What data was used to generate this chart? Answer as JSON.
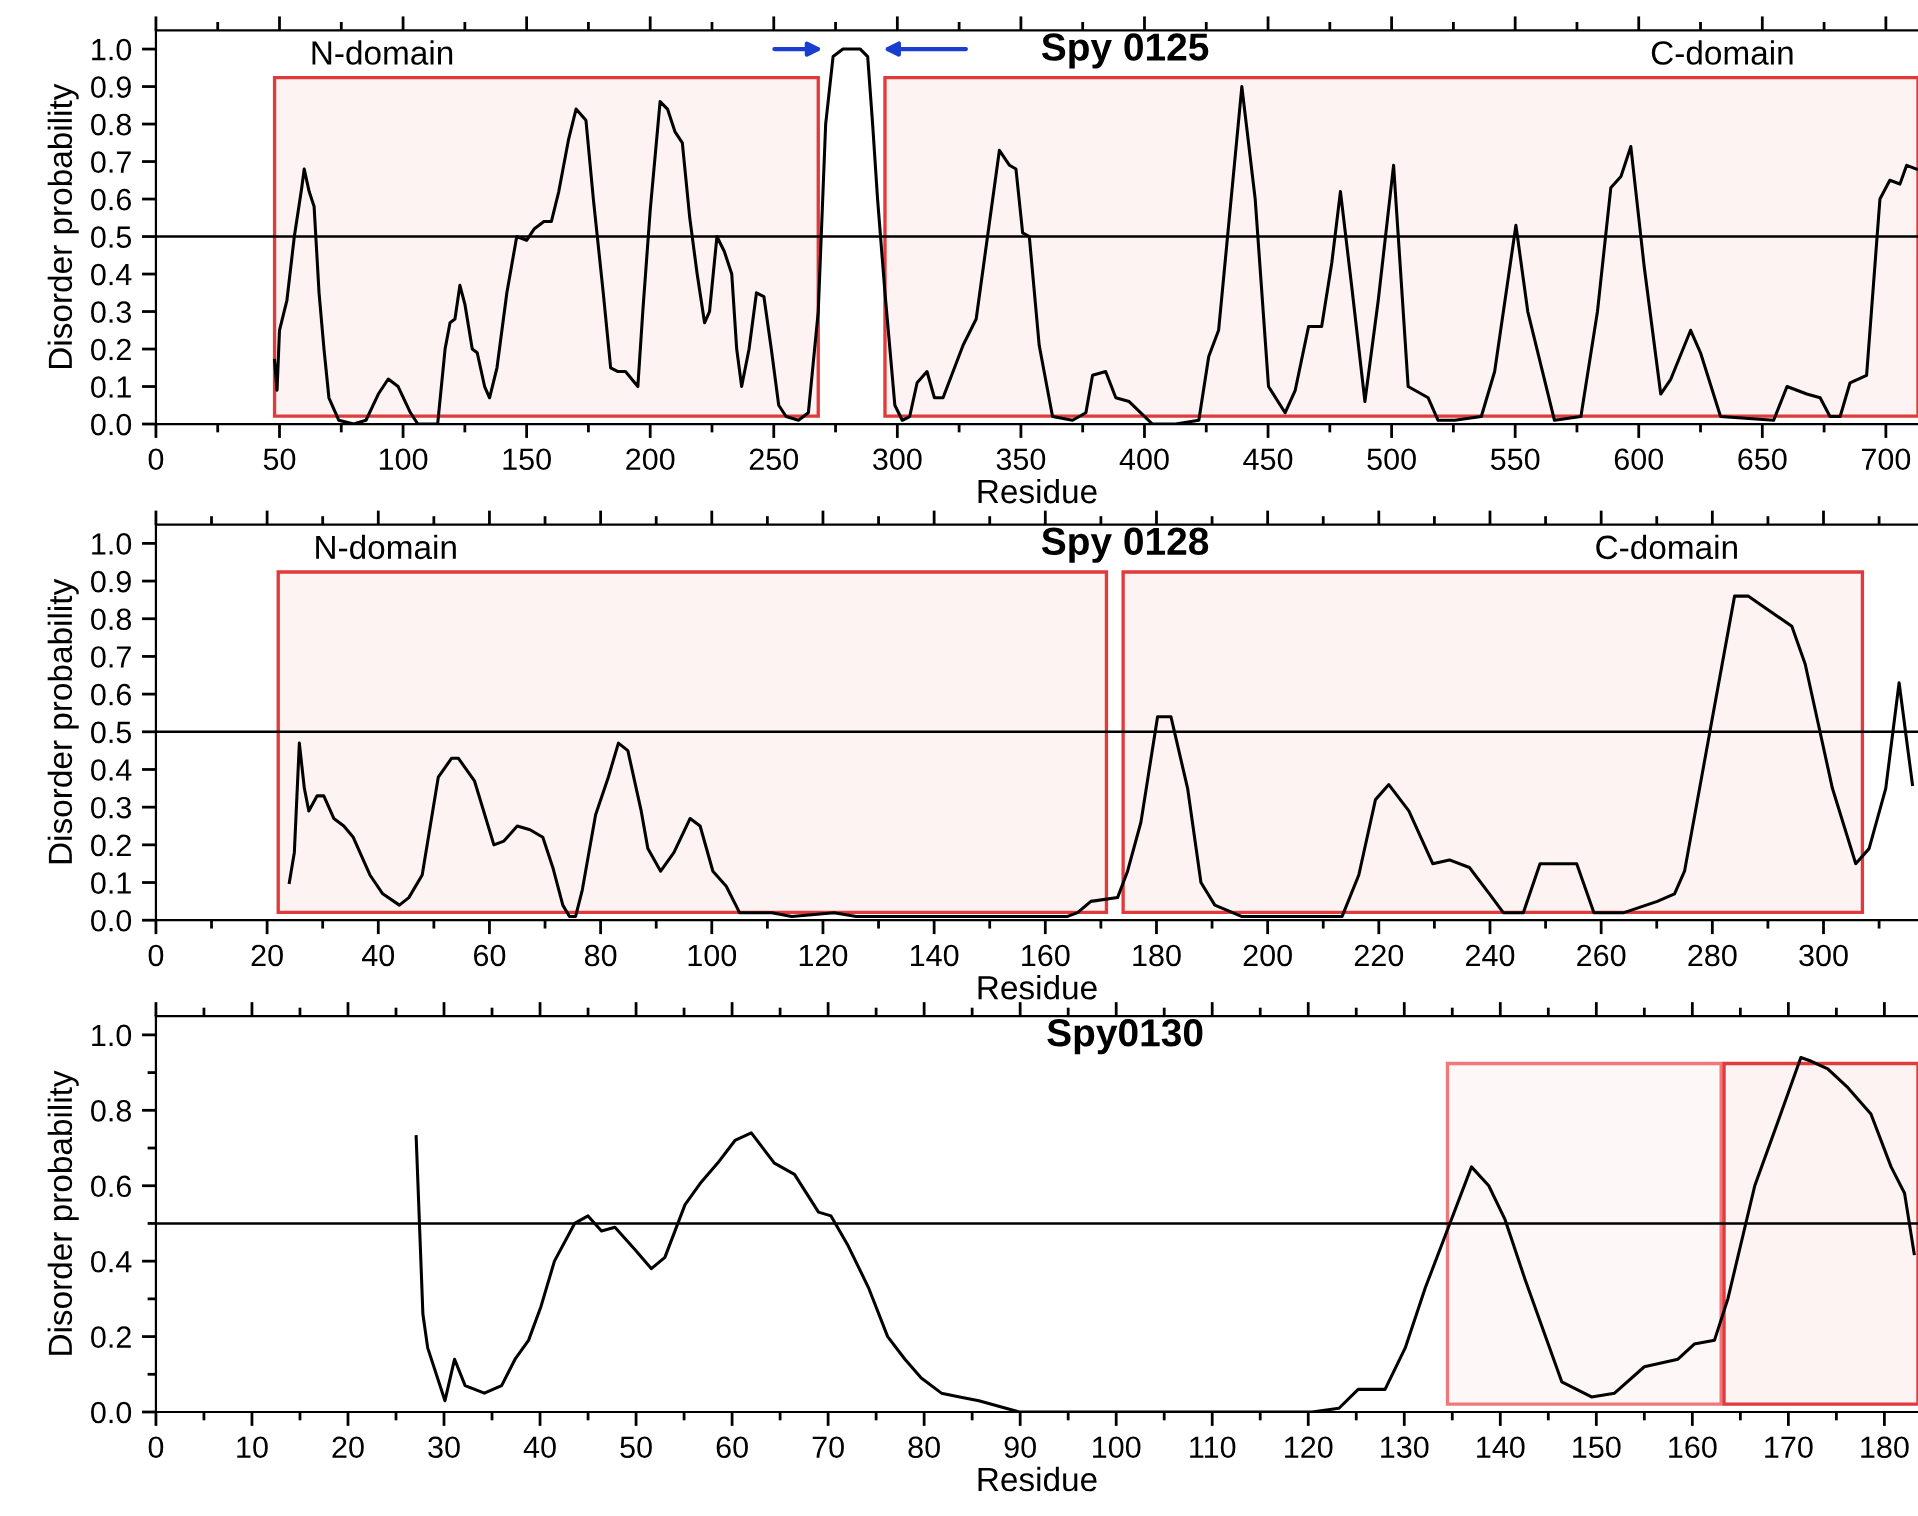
{
  "chart_data": [
    {
      "type": "line",
      "title": "Spy 0125",
      "xlabel": "Residue",
      "ylabel": "Disorder probability",
      "xlim": [
        0,
        713
      ],
      "ylim": [
        0,
        1.05
      ],
      "xticks": [
        0,
        {
          "value": 25,
          "label": null
        },
        50,
        {
          "value": 75,
          "label": null
        },
        100,
        {
          "value": 125,
          "label": null
        },
        150,
        {
          "value": 175,
          "label": null
        },
        200,
        {
          "value": 225,
          "label": null
        },
        250,
        {
          "value": 275,
          "label": null
        },
        300,
        {
          "value": 325,
          "label": null
        },
        350,
        {
          "value": 375,
          "label": null
        },
        400,
        {
          "value": 425,
          "label": null
        },
        450,
        {
          "value": 475,
          "label": null
        },
        500,
        {
          "value": 525,
          "label": null
        },
        550,
        {
          "value": 575,
          "label": null
        },
        600,
        {
          "value": 625,
          "label": null
        },
        650,
        {
          "value": 675,
          "label": null
        },
        700
      ],
      "yticks": [
        {
          "value": 0,
          "label": "0.0"
        },
        0.1,
        0.2,
        0.3,
        0.4,
        0.5,
        0.6,
        0.7,
        0.8,
        0.9,
        {
          "value": 1,
          "label": "1.0"
        }
      ],
      "grid": false,
      "marker": "none",
      "line_style": "solid",
      "ref_lines": [
        {
          "axis": "y",
          "value": 0.5,
          "color": "#000000"
        }
      ],
      "bands": [
        {
          "axis": "x",
          "from": 48,
          "to": 268,
          "color": "#e03a3a",
          "label": "N-domain"
        },
        {
          "axis": "x",
          "from": 295,
          "to": 713,
          "color": "#e03a3a",
          "label": "C-domain"
        }
      ],
      "series": [
        {
          "color": "#000000",
          "x": [
            48,
            49,
            50,
            53,
            56,
            59,
            60,
            62,
            64,
            66,
            68,
            70,
            74,
            80,
            85,
            90,
            94,
            98,
            103,
            106,
            114,
            117,
            119,
            121,
            123,
            125,
            128,
            130,
            133,
            135,
            138,
            142,
            146,
            150,
            153,
            157,
            160,
            163,
            167,
            170,
            174,
            177,
            181,
            184,
            187,
            190,
            195,
            197,
            200,
            204,
            207,
            210,
            213,
            216,
            219,
            222,
            224,
            227,
            230,
            233,
            235,
            237,
            240,
            243,
            246,
            249,
            252,
            255,
            260,
            264,
            268,
            271,
            274,
            278,
            285,
            288,
            290,
            292,
            295,
            299,
            302,
            305,
            308,
            312,
            315,
            318.5,
            326.6,
            331.9,
            341.3,
            345.4,
            348,
            350.7,
            353.4,
            357.4,
            362.8,
            370.9,
            376.3,
            379,
            384.3,
            388.4,
            393.8,
            403.2,
            412.6,
            422,
            426,
            430,
            439.4,
            444.8,
            450.2,
            456.9,
            461,
            466.4,
            471.7,
            475.8,
            479.3,
            483.8,
            489.2,
            494.6,
            500.8,
            506.7,
            514.8,
            518.8,
            525.5,
            536.3,
            541.7,
            550.3,
            555.1,
            565.9,
            576.6,
            583.3,
            588.7,
            592.8,
            596.8,
            602.2,
            608.9,
            613,
            621,
            625,
            633.1,
            654.6,
            660,
            668,
            673.4,
            677.4,
            681.5,
            685.5,
            692.2,
            697.6,
            701.6,
            705.7,
            708.4,
            712.4
          ],
          "values": [
            0.17,
            0.09,
            0.25,
            0.33,
            0.5,
            0.63,
            0.68,
            0.62,
            0.58,
            0.35,
            0.2,
            0.07,
            0.01,
            0.0,
            0.01,
            0.08,
            0.12,
            0.1,
            0.03,
            0.0,
            0.0,
            0.2,
            0.27,
            0.28,
            0.37,
            0.32,
            0.2,
            0.19,
            0.1,
            0.07,
            0.15,
            0.35,
            0.5,
            0.49,
            0.52,
            0.54,
            0.54,
            0.62,
            0.76,
            0.84,
            0.81,
            0.6,
            0.35,
            0.15,
            0.14,
            0.14,
            0.1,
            0.3,
            0.57,
            0.86,
            0.84,
            0.78,
            0.75,
            0.55,
            0.4,
            0.27,
            0.3,
            0.5,
            0.46,
            0.4,
            0.2,
            0.1,
            0.2,
            0.35,
            0.34,
            0.2,
            0.05,
            0.02,
            0.01,
            0.03,
            0.3,
            0.8,
            0.98,
            1.0,
            1.0,
            0.98,
            0.8,
            0.6,
            0.35,
            0.05,
            0.01,
            0.02,
            0.11,
            0.14,
            0.07,
            0.07,
            0.21,
            0.28,
            0.73,
            0.69,
            0.68,
            0.51,
            0.5,
            0.21,
            0.02,
            0.01,
            0.03,
            0.13,
            0.14,
            0.07,
            0.06,
            0.0,
            0.0,
            0.01,
            0.18,
            0.25,
            0.9,
            0.6,
            0.1,
            0.03,
            0.09,
            0.26,
            0.26,
            0.43,
            0.62,
            0.37,
            0.06,
            0.33,
            0.69,
            0.1,
            0.07,
            0.01,
            0.01,
            0.02,
            0.14,
            0.53,
            0.3,
            0.01,
            0.02,
            0.3,
            0.63,
            0.66,
            0.74,
            0.42,
            0.08,
            0.12,
            0.25,
            0.19,
            0.02,
            0.01,
            0.1,
            0.08,
            0.07,
            0.02,
            0.02,
            0.11,
            0.13,
            0.6,
            0.65,
            0.64,
            0.69,
            0.68
          ]
        }
      ]
    },
    {
      "type": "line",
      "title": "Spy 0128",
      "xlabel": "Residue",
      "ylabel": "Disorder probability",
      "xlim": [
        0,
        317
      ],
      "ylim": [
        0,
        1.05
      ],
      "xticks": [
        0,
        {
          "value": 10,
          "label": null
        },
        20,
        {
          "value": 30,
          "label": null
        },
        40,
        {
          "value": 50,
          "label": null
        },
        60,
        {
          "value": 70,
          "label": null
        },
        80,
        {
          "value": 90,
          "label": null
        },
        100,
        {
          "value": 110,
          "label": null
        },
        120,
        {
          "value": 130,
          "label": null
        },
        140,
        {
          "value": 150,
          "label": null
        },
        160,
        {
          "value": 170,
          "label": null
        },
        180,
        {
          "value": 190,
          "label": null
        },
        200,
        {
          "value": 210,
          "label": null
        },
        220,
        {
          "value": 230,
          "label": null
        },
        240,
        {
          "value": 250,
          "label": null
        },
        260,
        {
          "value": 270,
          "label": null
        },
        280,
        {
          "value": 290,
          "label": null
        },
        300,
        {
          "value": 310,
          "label": null
        }
      ],
      "yticks": [
        {
          "value": 0,
          "label": "0.0"
        },
        0.1,
        0.2,
        0.3,
        0.4,
        0.5,
        0.6,
        0.7,
        0.8,
        0.9,
        {
          "value": 1,
          "label": "1.0"
        }
      ],
      "grid": false,
      "marker": "none",
      "line_style": "solid",
      "ref_lines": [
        {
          "axis": "y",
          "value": 0.5,
          "color": "#000000"
        }
      ],
      "bands": [
        {
          "axis": "x",
          "from": 22,
          "to": 171,
          "color": "#e03a3a",
          "label": "N-domain"
        },
        {
          "axis": "x",
          "from": 174,
          "to": 307,
          "color": "#e03a3a",
          "label": "C-domain"
        }
      ],
      "series": [
        {
          "color": "#000000",
          "x": [
            24,
            24.9,
            25.8,
            26.7,
            27.5,
            29,
            30.2,
            32,
            33.8,
            35.5,
            38.5,
            40.8,
            43.8,
            45.5,
            47.9,
            50.8,
            53.2,
            54.4,
            57.3,
            60.8,
            62.6,
            65,
            67.3,
            69.6,
            71.4,
            73.2,
            74.4,
            75.5,
            76.7,
            79.1,
            81.4,
            83.2,
            84.9,
            87.3,
            88.5,
            90.8,
            93.2,
            96.1,
            97.9,
            100.2,
            102.6,
            105,
            110.8,
            114.4,
            122,
            126,
            137.9,
            164,
            165.8,
            168.2,
            173,
            174.8,
            177.2,
            180.2,
            182.6,
            185.6,
            188,
            190.5,
            195.3,
            207.3,
            213.4,
            216.4,
            219.4,
            221.8,
            225.4,
            229.7,
            232.7,
            236.3,
            239.9,
            242.4,
            246,
            249,
            255.6,
            258.7,
            264.1,
            270.1,
            273.2,
            275,
            279.8,
            284,
            286.5,
            294.3,
            296.7,
            301.6,
            305.8,
            308.2,
            311.2,
            313.6,
            316
          ],
          "values": [
            0.1,
            0.18,
            0.47,
            0.35,
            0.29,
            0.33,
            0.33,
            0.27,
            0.25,
            0.22,
            0.12,
            0.07,
            0.04,
            0.06,
            0.12,
            0.38,
            0.43,
            0.43,
            0.37,
            0.2,
            0.21,
            0.25,
            0.24,
            0.22,
            0.14,
            0.04,
            0.01,
            0.01,
            0.08,
            0.28,
            0.38,
            0.47,
            0.45,
            0.29,
            0.19,
            0.13,
            0.18,
            0.27,
            0.25,
            0.13,
            0.09,
            0.02,
            0.02,
            0.01,
            0.02,
            0.01,
            0.01,
            0.01,
            0.02,
            0.05,
            0.06,
            0.13,
            0.26,
            0.54,
            0.54,
            0.35,
            0.1,
            0.04,
            0.01,
            0.01,
            0.01,
            0.12,
            0.32,
            0.36,
            0.29,
            0.15,
            0.16,
            0.14,
            0.07,
            0.02,
            0.02,
            0.15,
            0.15,
            0.02,
            0.02,
            0.05,
            0.07,
            0.13,
            0.52,
            0.86,
            0.86,
            0.78,
            0.68,
            0.35,
            0.15,
            0.19,
            0.35,
            0.63,
            0.36
          ]
        }
      ]
    },
    {
      "type": "line",
      "title": "Spy0130",
      "xlabel": "Residue",
      "ylabel": "Disorder probability",
      "xlim": [
        0,
        183.5
      ],
      "ylim": [
        0,
        1.05
      ],
      "xticks": [
        0,
        {
          "value": 5,
          "label": null
        },
        10,
        {
          "value": 15,
          "label": null
        },
        20,
        {
          "value": 25,
          "label": null
        },
        30,
        {
          "value": 35,
          "label": null
        },
        40,
        {
          "value": 45,
          "label": null
        },
        50,
        {
          "value": 55,
          "label": null
        },
        60,
        {
          "value": 65,
          "label": null
        },
        70,
        {
          "value": 75,
          "label": null
        },
        80,
        {
          "value": 85,
          "label": null
        },
        90,
        {
          "value": 95,
          "label": null
        },
        100,
        {
          "value": 105,
          "label": null
        },
        110,
        {
          "value": 115,
          "label": null
        },
        120,
        {
          "value": 125,
          "label": null
        },
        130,
        {
          "value": 135,
          "label": null
        },
        140,
        {
          "value": 145,
          "label": null
        },
        150,
        {
          "value": 155,
          "label": null
        },
        160,
        {
          "value": 165,
          "label": null
        },
        170,
        {
          "value": 175,
          "label": null
        },
        180
      ],
      "yticks": [
        {
          "value": 0,
          "label": "0.0"
        },
        {
          "value": 0.1,
          "label": null
        },
        0.2,
        {
          "value": 0.3,
          "label": null
        },
        0.4,
        {
          "value": 0.5,
          "label": null
        },
        0.6,
        {
          "value": 0.7,
          "label": null
        },
        0.8,
        {
          "value": 0.9,
          "label": null
        },
        {
          "value": 1,
          "label": "1.0"
        }
      ],
      "grid": false,
      "marker": "none",
      "line_style": "solid",
      "ref_lines": [
        {
          "axis": "y",
          "value": 0.5,
          "color": "#000000"
        }
      ],
      "bands": [
        {
          "axis": "x",
          "from": 134.5,
          "to": 163,
          "color": "#f07a7a"
        },
        {
          "axis": "x",
          "from": 163.3,
          "to": 183.5,
          "color": "#e03a3a"
        }
      ],
      "series": [
        {
          "color": "#000000",
          "x": [
            27.1,
            27.8,
            28.3,
            30.1,
            31.1,
            32.2,
            34.2,
            36,
            37.4,
            38.8,
            40.1,
            41.5,
            43.6,
            45,
            46.4,
            47.8,
            49.9,
            51.6,
            53,
            55.1,
            56.8,
            58.5,
            60.3,
            62,
            64.4,
            66.5,
            69,
            70.3,
            72.1,
            74.2,
            76.2,
            78,
            79.7,
            81.8,
            83.7,
            85.7,
            89.9,
            109.3,
            120.4,
            123.2,
            125.2,
            128,
            130.1,
            132.2,
            134.6,
            137,
            138.8,
            140.5,
            142.6,
            146.4,
            149.5,
            151.9,
            155,
            158.5,
            160.2,
            162.3,
            163.7,
            166.5,
            169.2,
            171.3,
            172.4,
            174.1,
            176.2,
            178.6,
            180.7,
            182.1,
            183.1
          ],
          "values": [
            0.73,
            0.26,
            0.17,
            0.03,
            0.14,
            0.07,
            0.05,
            0.07,
            0.14,
            0.19,
            0.28,
            0.4,
            0.5,
            0.52,
            0.48,
            0.49,
            0.43,
            0.38,
            0.41,
            0.55,
            0.61,
            0.66,
            0.72,
            0.74,
            0.66,
            0.63,
            0.53,
            0.52,
            0.44,
            0.33,
            0.2,
            0.14,
            0.09,
            0.05,
            0.04,
            0.03,
            0.0,
            0.0,
            0.0,
            0.01,
            0.06,
            0.06,
            0.17,
            0.33,
            0.49,
            0.65,
            0.6,
            0.51,
            0.35,
            0.08,
            0.04,
            0.05,
            0.12,
            0.14,
            0.18,
            0.19,
            0.3,
            0.6,
            0.79,
            0.94,
            0.93,
            0.91,
            0.86,
            0.79,
            0.65,
            0.58,
            0.42
          ]
        }
      ]
    }
  ]
}
